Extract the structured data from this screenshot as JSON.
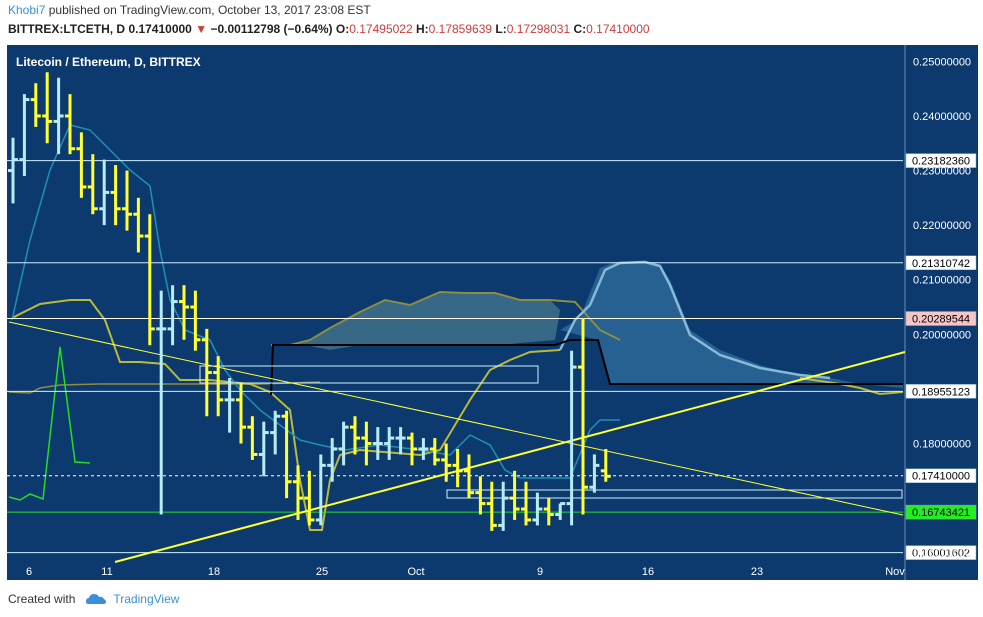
{
  "header": {
    "author": "Khobi7",
    "published_text": "published on TradingView.com, October 13, 2017 23:08 EST"
  },
  "ohlc": {
    "symbol": "BITTREX:LTCETH, D",
    "last": "0.17410000",
    "change": "−0.00112798 (−0.64%)",
    "o_label": "O:",
    "o": "0.17495022",
    "h_label": "H:",
    "h": "0.17859639",
    "l_label": "L:",
    "l": "0.17298031",
    "c_label": "C:",
    "c": "0.17410000"
  },
  "footer": {
    "created_with": "Created with",
    "brand": "TradingView"
  },
  "colors": {
    "bg": "#0d3a6e",
    "up": "#b8ecf5",
    "down": "#ffff33",
    "cloud": "#2f6f9e",
    "green_line": "#22dd22"
  },
  "chart_data": {
    "type": "ohlc",
    "title": "Litecoin / Ethereum, D, BITTREX",
    "x_ticks": [
      "6",
      "11",
      "18",
      "25",
      "Oct",
      "9",
      "16",
      "23",
      "Nov"
    ],
    "y_ticks": [
      "0.25000000",
      "0.24000000",
      "0.23000000",
      "0.22000000",
      "0.21000000",
      "0.20000000",
      "0.18000000",
      "0.16000000"
    ],
    "ylim": [
      0.155,
      0.253
    ],
    "price_labels": [
      {
        "value": 0.2318236,
        "text": "0.23182360",
        "style": "line"
      },
      {
        "value": 0.21310742,
        "text": "0.21310742",
        "style": "line"
      },
      {
        "value": 0.20289544,
        "text": "0.20289544",
        "style": "pink"
      },
      {
        "value": 0.18955123,
        "text": "0.18955123",
        "style": "line"
      },
      {
        "value": 0.1741,
        "text": "0.17410000",
        "style": "last"
      },
      {
        "value": 0.16743421,
        "text": "0.16743421",
        "style": "green"
      },
      {
        "value": 0.16001602,
        "text": "0.16001602",
        "style": "line"
      }
    ],
    "bars": [
      [
        0.23,
        0.236,
        0.224,
        0.232
      ],
      [
        0.232,
        0.244,
        0.229,
        0.243
      ],
      [
        0.243,
        0.246,
        0.238,
        0.24
      ],
      [
        0.24,
        0.248,
        0.235,
        0.239
      ],
      [
        0.239,
        0.247,
        0.233,
        0.24
      ],
      [
        0.24,
        0.244,
        0.233,
        0.234
      ],
      [
        0.234,
        0.237,
        0.225,
        0.227
      ],
      [
        0.227,
        0.233,
        0.222,
        0.223
      ],
      [
        0.223,
        0.232,
        0.22,
        0.226
      ],
      [
        0.226,
        0.231,
        0.22,
        0.223
      ],
      [
        0.223,
        0.23,
        0.219,
        0.222
      ],
      [
        0.222,
        0.225,
        0.215,
        0.218
      ],
      [
        0.218,
        0.222,
        0.198,
        0.201
      ],
      [
        0.201,
        0.208,
        0.167,
        0.201
      ],
      [
        0.201,
        0.209,
        0.198,
        0.206
      ],
      [
        0.206,
        0.209,
        0.199,
        0.205
      ],
      [
        0.205,
        0.208,
        0.197,
        0.199
      ],
      [
        0.199,
        0.201,
        0.185,
        0.193
      ],
      [
        0.193,
        0.196,
        0.185,
        0.188
      ],
      [
        0.188,
        0.192,
        0.182,
        0.188
      ],
      [
        0.188,
        0.191,
        0.18,
        0.183
      ],
      [
        0.183,
        0.185,
        0.177,
        0.178
      ],
      [
        0.178,
        0.184,
        0.174,
        0.182
      ],
      [
        0.182,
        0.186,
        0.178,
        0.185
      ],
      [
        0.185,
        0.186,
        0.17,
        0.173
      ],
      [
        0.173,
        0.176,
        0.166,
        0.17
      ],
      [
        0.17,
        0.175,
        0.165,
        0.166
      ],
      [
        0.166,
        0.178,
        0.165,
        0.176
      ],
      [
        0.176,
        0.181,
        0.173,
        0.179
      ],
      [
        0.179,
        0.184,
        0.176,
        0.183
      ],
      [
        0.183,
        0.185,
        0.178,
        0.181
      ],
      [
        0.181,
        0.184,
        0.176,
        0.18
      ],
      [
        0.18,
        0.183,
        0.177,
        0.18
      ],
      [
        0.18,
        0.183,
        0.177,
        0.181
      ],
      [
        0.181,
        0.183,
        0.178,
        0.181
      ],
      [
        0.181,
        0.182,
        0.176,
        0.179
      ],
      [
        0.179,
        0.181,
        0.177,
        0.179
      ],
      [
        0.179,
        0.181,
        0.176,
        0.177
      ],
      [
        0.177,
        0.18,
        0.173,
        0.176
      ],
      [
        0.176,
        0.179,
        0.172,
        0.175
      ],
      [
        0.175,
        0.178,
        0.17,
        0.171
      ],
      [
        0.171,
        0.174,
        0.167,
        0.169
      ],
      [
        0.169,
        0.173,
        0.164,
        0.165
      ],
      [
        0.165,
        0.173,
        0.164,
        0.17
      ],
      [
        0.17,
        0.175,
        0.166,
        0.168
      ],
      [
        0.168,
        0.173,
        0.165,
        0.166
      ],
      [
        0.166,
        0.171,
        0.165,
        0.168
      ],
      [
        0.168,
        0.17,
        0.165,
        0.167
      ],
      [
        0.167,
        0.169,
        0.166,
        0.169
      ],
      [
        0.169,
        0.197,
        0.165,
        0.194
      ],
      [
        0.194,
        0.203,
        0.167,
        0.172
      ],
      [
        0.172,
        0.178,
        0.171,
        0.176
      ],
      [
        0.175,
        0.179,
        0.173,
        0.174
      ]
    ]
  }
}
